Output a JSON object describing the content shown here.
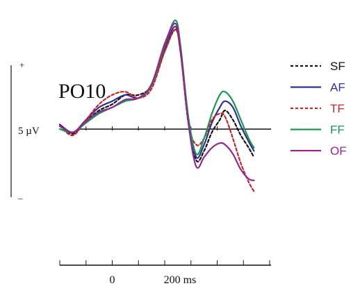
{
  "chart_data": {
    "type": "line",
    "title": "PO10",
    "x_unit_label": "200 ms",
    "x_tick_labels": [
      "0",
      "200 ms"
    ],
    "scale_bar": {
      "label": "5 µV",
      "plus": "+",
      "minus": "–"
    },
    "xlim": [
      -200,
      600
    ],
    "ylim": [
      -6,
      7
    ],
    "grid": false,
    "legend": "right",
    "series": [
      {
        "name": "SF",
        "color": "#111111",
        "dash": "4 3",
        "points": [
          [
            -200,
            0.2
          ],
          [
            -150,
            -0.3
          ],
          [
            -100,
            0.5
          ],
          [
            -50,
            1.2
          ],
          [
            0,
            1.6
          ],
          [
            50,
            2.2
          ],
          [
            100,
            2.2
          ],
          [
            150,
            2.8
          ],
          [
            200,
            5.0
          ],
          [
            240,
            6.4
          ],
          [
            260,
            5.2
          ],
          [
            290,
            0.6
          ],
          [
            320,
            -2.0
          ],
          [
            350,
            -1.4
          ],
          [
            380,
            -0.2
          ],
          [
            410,
            0.6
          ],
          [
            430,
            1.2
          ],
          [
            460,
            0.6
          ],
          [
            490,
            -0.4
          ],
          [
            520,
            -1.2
          ],
          [
            540,
            -1.8
          ]
        ]
      },
      {
        "name": "AF",
        "color": "#2e3192",
        "dash": "",
        "points": [
          [
            -200,
            0.3
          ],
          [
            -150,
            -0.2
          ],
          [
            -100,
            0.6
          ],
          [
            -50,
            1.4
          ],
          [
            0,
            1.8
          ],
          [
            50,
            2.2
          ],
          [
            100,
            2.0
          ],
          [
            150,
            2.8
          ],
          [
            200,
            5.2
          ],
          [
            240,
            6.6
          ],
          [
            260,
            5.0
          ],
          [
            290,
            0.6
          ],
          [
            320,
            -1.8
          ],
          [
            350,
            -1.0
          ],
          [
            380,
            0.4
          ],
          [
            410,
            1.4
          ],
          [
            430,
            1.8
          ],
          [
            460,
            1.4
          ],
          [
            490,
            0.2
          ],
          [
            520,
            -0.8
          ],
          [
            540,
            -1.4
          ]
        ]
      },
      {
        "name": "TF",
        "color": "#c1272d",
        "dash": "4 3",
        "points": [
          [
            -200,
            0.2
          ],
          [
            -150,
            -0.4
          ],
          [
            -100,
            0.6
          ],
          [
            -50,
            1.6
          ],
          [
            0,
            2.2
          ],
          [
            50,
            2.4
          ],
          [
            100,
            2.0
          ],
          [
            150,
            2.6
          ],
          [
            200,
            5.0
          ],
          [
            240,
            6.4
          ],
          [
            260,
            5.0
          ],
          [
            290,
            0.4
          ],
          [
            320,
            -1.0
          ],
          [
            350,
            -0.6
          ],
          [
            380,
            0.6
          ],
          [
            410,
            1.0
          ],
          [
            430,
            0.8
          ],
          [
            460,
            -0.6
          ],
          [
            490,
            -2.2
          ],
          [
            520,
            -3.4
          ],
          [
            540,
            -4.0
          ]
        ]
      },
      {
        "name": "FF",
        "color": "#1a9850",
        "dash": "",
        "points": [
          [
            -200,
            0.0
          ],
          [
            -150,
            -0.2
          ],
          [
            -100,
            0.4
          ],
          [
            -50,
            1.0
          ],
          [
            0,
            1.4
          ],
          [
            50,
            1.8
          ],
          [
            100,
            2.0
          ],
          [
            150,
            2.8
          ],
          [
            200,
            5.4
          ],
          [
            240,
            7.0
          ],
          [
            260,
            5.4
          ],
          [
            290,
            0.8
          ],
          [
            320,
            -1.6
          ],
          [
            350,
            -0.6
          ],
          [
            380,
            1.0
          ],
          [
            410,
            2.2
          ],
          [
            430,
            2.4
          ],
          [
            460,
            1.8
          ],
          [
            490,
            0.6
          ],
          [
            520,
            -0.6
          ],
          [
            540,
            -1.2
          ]
        ]
      },
      {
        "name": "OF",
        "color": "#92278f",
        "dash": "",
        "points": [
          [
            -200,
            0.2
          ],
          [
            -150,
            -0.2
          ],
          [
            -100,
            0.5
          ],
          [
            -50,
            1.1
          ],
          [
            0,
            1.4
          ],
          [
            50,
            1.9
          ],
          [
            100,
            2.0
          ],
          [
            150,
            2.9
          ],
          [
            200,
            5.5
          ],
          [
            240,
            6.8
          ],
          [
            260,
            5.2
          ],
          [
            290,
            0.4
          ],
          [
            320,
            -2.4
          ],
          [
            350,
            -1.8
          ],
          [
            380,
            -1.2
          ],
          [
            410,
            -0.9
          ],
          [
            430,
            -1.0
          ],
          [
            460,
            -1.6
          ],
          [
            490,
            -2.6
          ],
          [
            520,
            -3.2
          ],
          [
            540,
            -3.3
          ]
        ]
      }
    ]
  }
}
